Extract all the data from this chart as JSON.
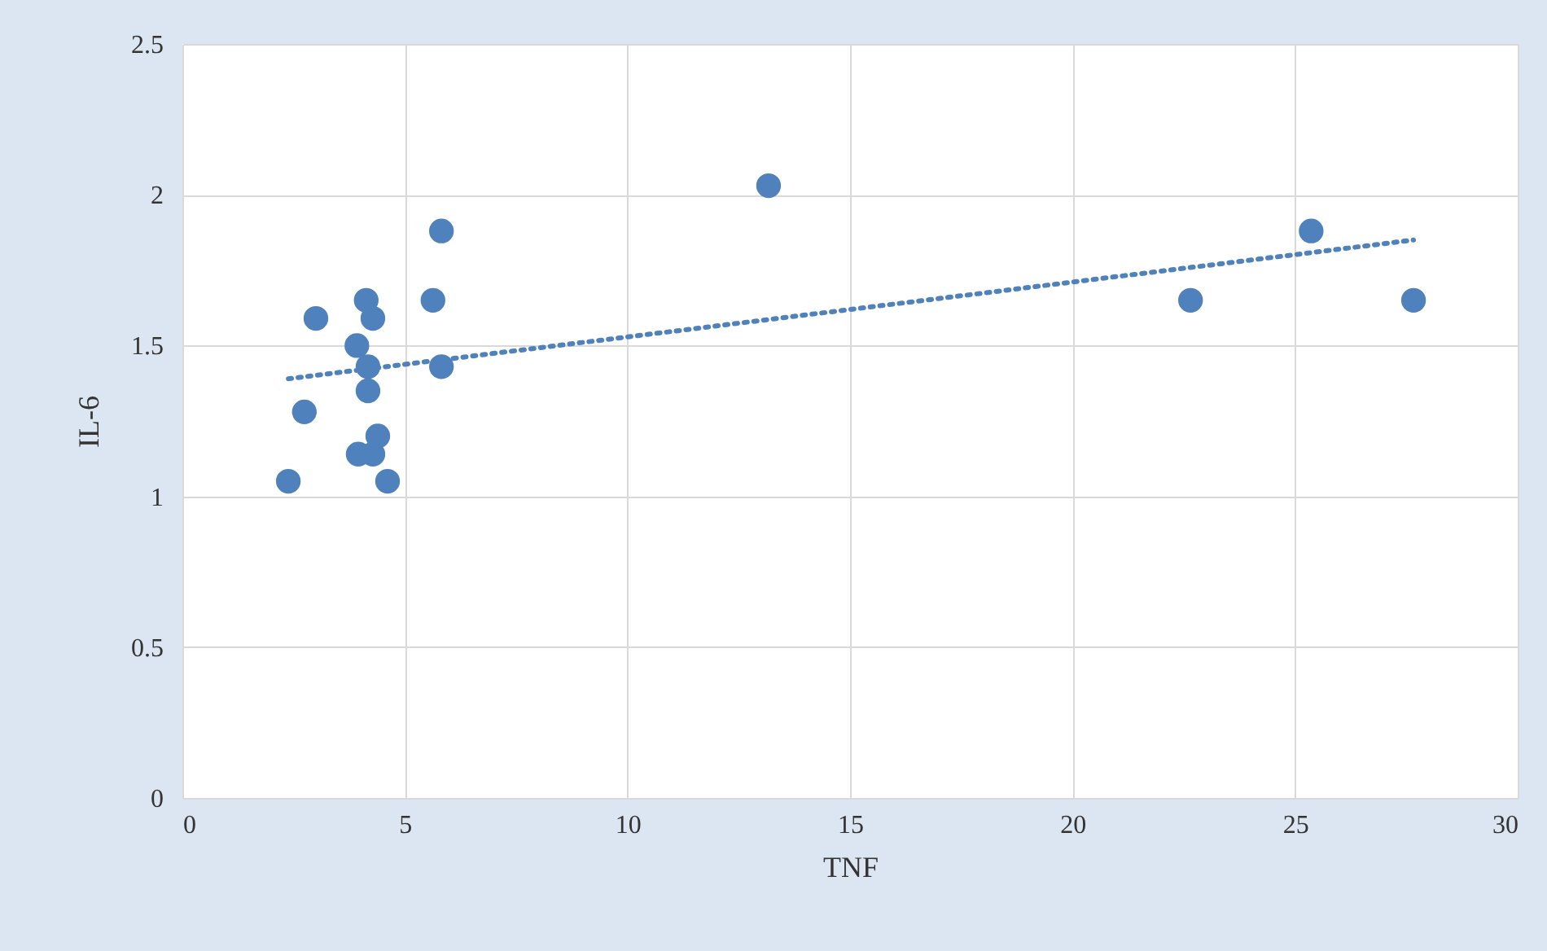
{
  "chart_data": {
    "type": "scatter",
    "xlabel": "TNF",
    "ylabel": "IL-6",
    "xlim": [
      0,
      30
    ],
    "xticks": [
      0,
      5,
      10,
      15,
      20,
      25,
      30
    ],
    "ylim": [
      0,
      2.5
    ],
    "yticks": [
      0,
      0.5,
      1,
      1.5,
      2,
      2.5
    ],
    "grid": true,
    "series": [
      {
        "color": "#4f81bd",
        "marker": "circle",
        "x": [
          2.38,
          2.74,
          3.0,
          3.92,
          3.95,
          4.13,
          4.17,
          4.17,
          4.28,
          4.28,
          4.39,
          4.61,
          5.63,
          5.82,
          5.82,
          13.17,
          22.65,
          25.36,
          27.66
        ],
        "values": [
          1.05,
          1.28,
          1.59,
          1.5,
          1.14,
          1.65,
          1.43,
          1.35,
          1.59,
          1.14,
          1.2,
          1.05,
          1.65,
          1.88,
          1.43,
          2.03,
          1.65,
          1.88,
          1.65
        ]
      },
      {
        "type": "line",
        "color": "#4f81bd",
        "marker": "none",
        "line_style": "dotted",
        "x": [
          2.38,
          27.66
        ],
        "values": [
          1.39,
          1.85
        ]
      }
    ]
  }
}
